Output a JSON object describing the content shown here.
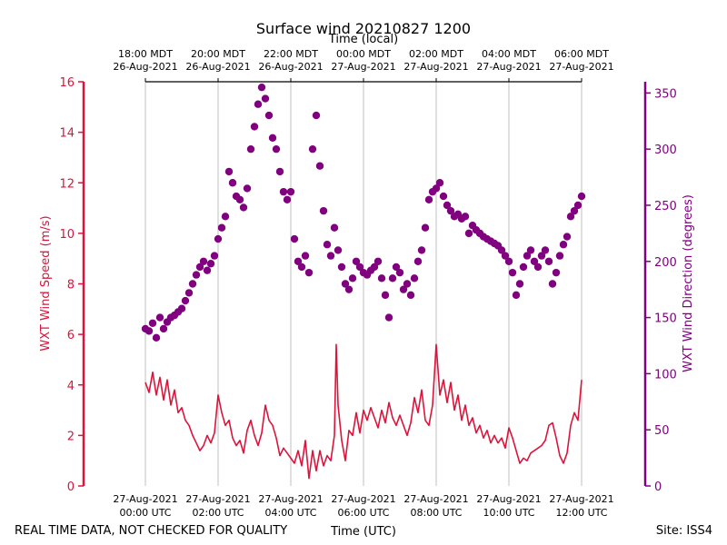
{
  "footer": {
    "note": "REAL TIME DATA, NOT CHECKED FOR QUALITY",
    "site": "Site: ISS4"
  },
  "colors": {
    "speed": "#dc143c",
    "direction": "#800080",
    "grid": "#b0b0b0",
    "axis": "#000000"
  },
  "chart_data": {
    "type": "line",
    "title": "Surface wind 20210827 1200",
    "xlabel": "Time (UTC)",
    "xlabel_top": "Time (local)",
    "ylabel_left": "WXT Wind Speed (m/s)",
    "ylabel_right": "WXT Wind Direction (degrees)",
    "xlim_hours_utc": [
      0,
      12
    ],
    "ylim_left": [
      0,
      16
    ],
    "ylim_right": [
      0,
      360
    ],
    "grid": "vertical",
    "yticks_left": [
      0,
      2,
      4,
      6,
      8,
      10,
      12,
      14,
      16
    ],
    "yticks_right": [
      0,
      50,
      100,
      150,
      200,
      250,
      300,
      350
    ],
    "xticks_bottom": [
      {
        "line1": "27-Aug-2021",
        "line2": "00:00 UTC"
      },
      {
        "line1": "27-Aug-2021",
        "line2": "02:00 UTC"
      },
      {
        "line1": "27-Aug-2021",
        "line2": "04:00 UTC"
      },
      {
        "line1": "27-Aug-2021",
        "line2": "06:00 UTC"
      },
      {
        "line1": "27-Aug-2021",
        "line2": "08:00 UTC"
      },
      {
        "line1": "27-Aug-2021",
        "line2": "10:00 UTC"
      },
      {
        "line1": "27-Aug-2021",
        "line2": "12:00 UTC"
      }
    ],
    "xticks_top": [
      {
        "line1": "18:00 MDT",
        "line2": "26-Aug-2021"
      },
      {
        "line1": "20:00 MDT",
        "line2": "26-Aug-2021"
      },
      {
        "line1": "22:00 MDT",
        "line2": "26-Aug-2021"
      },
      {
        "line1": "00:00 MDT",
        "line2": "27-Aug-2021"
      },
      {
        "line1": "02:00 MDT",
        "line2": "27-Aug-2021"
      },
      {
        "line1": "04:00 MDT",
        "line2": "27-Aug-2021"
      },
      {
        "line1": "06:00 MDT",
        "line2": "27-Aug-2021"
      }
    ],
    "series": [
      {
        "name": "WXT Wind Speed",
        "kind": "line",
        "axis": "left",
        "points": [
          [
            0.0,
            4.1
          ],
          [
            0.1,
            3.7
          ],
          [
            0.2,
            4.5
          ],
          [
            0.3,
            3.6
          ],
          [
            0.4,
            4.3
          ],
          [
            0.5,
            3.4
          ],
          [
            0.6,
            4.2
          ],
          [
            0.7,
            3.2
          ],
          [
            0.8,
            3.8
          ],
          [
            0.9,
            2.9
          ],
          [
            1.0,
            3.1
          ],
          [
            1.1,
            2.6
          ],
          [
            1.2,
            2.4
          ],
          [
            1.3,
            2.0
          ],
          [
            1.4,
            1.7
          ],
          [
            1.5,
            1.4
          ],
          [
            1.6,
            1.6
          ],
          [
            1.7,
            2.0
          ],
          [
            1.8,
            1.7
          ],
          [
            1.9,
            2.1
          ],
          [
            2.0,
            3.6
          ],
          [
            2.1,
            2.9
          ],
          [
            2.2,
            2.4
          ],
          [
            2.3,
            2.6
          ],
          [
            2.4,
            1.9
          ],
          [
            2.5,
            1.6
          ],
          [
            2.6,
            1.8
          ],
          [
            2.7,
            1.3
          ],
          [
            2.8,
            2.2
          ],
          [
            2.9,
            2.6
          ],
          [
            3.0,
            2.0
          ],
          [
            3.1,
            1.6
          ],
          [
            3.2,
            2.1
          ],
          [
            3.3,
            3.2
          ],
          [
            3.4,
            2.6
          ],
          [
            3.5,
            2.4
          ],
          [
            3.6,
            1.9
          ],
          [
            3.7,
            1.2
          ],
          [
            3.8,
            1.5
          ],
          [
            3.9,
            1.3
          ],
          [
            4.0,
            1.1
          ],
          [
            4.1,
            0.9
          ],
          [
            4.2,
            1.4
          ],
          [
            4.3,
            0.8
          ],
          [
            4.4,
            1.8
          ],
          [
            4.5,
            0.3
          ],
          [
            4.6,
            1.4
          ],
          [
            4.7,
            0.6
          ],
          [
            4.8,
            1.4
          ],
          [
            4.9,
            0.8
          ],
          [
            5.0,
            1.2
          ],
          [
            5.1,
            1.0
          ],
          [
            5.2,
            2.0
          ],
          [
            5.25,
            5.6
          ],
          [
            5.3,
            3.2
          ],
          [
            5.4,
            1.8
          ],
          [
            5.5,
            1.0
          ],
          [
            5.6,
            2.2
          ],
          [
            5.7,
            2.0
          ],
          [
            5.8,
            2.9
          ],
          [
            5.9,
            2.1
          ],
          [
            6.0,
            3.0
          ],
          [
            6.1,
            2.6
          ],
          [
            6.2,
            3.1
          ],
          [
            6.3,
            2.7
          ],
          [
            6.4,
            2.3
          ],
          [
            6.5,
            3.0
          ],
          [
            6.6,
            2.5
          ],
          [
            6.7,
            3.3
          ],
          [
            6.8,
            2.7
          ],
          [
            6.9,
            2.4
          ],
          [
            7.0,
            2.8
          ],
          [
            7.1,
            2.4
          ],
          [
            7.2,
            2.0
          ],
          [
            7.3,
            2.5
          ],
          [
            7.4,
            3.5
          ],
          [
            7.5,
            2.9
          ],
          [
            7.6,
            3.8
          ],
          [
            7.7,
            2.6
          ],
          [
            7.8,
            2.4
          ],
          [
            7.9,
            3.2
          ],
          [
            8.0,
            5.6
          ],
          [
            8.1,
            3.6
          ],
          [
            8.2,
            4.2
          ],
          [
            8.3,
            3.3
          ],
          [
            8.4,
            4.1
          ],
          [
            8.5,
            3.0
          ],
          [
            8.6,
            3.6
          ],
          [
            8.7,
            2.6
          ],
          [
            8.8,
            3.2
          ],
          [
            8.9,
            2.4
          ],
          [
            9.0,
            2.7
          ],
          [
            9.1,
            2.1
          ],
          [
            9.2,
            2.4
          ],
          [
            9.3,
            1.9
          ],
          [
            9.4,
            2.2
          ],
          [
            9.5,
            1.7
          ],
          [
            9.6,
            2.0
          ],
          [
            9.7,
            1.7
          ],
          [
            9.8,
            1.9
          ],
          [
            9.9,
            1.5
          ],
          [
            10.0,
            2.3
          ],
          [
            10.1,
            1.9
          ],
          [
            10.2,
            1.4
          ],
          [
            10.3,
            0.9
          ],
          [
            10.4,
            1.1
          ],
          [
            10.5,
            1.0
          ],
          [
            10.6,
            1.3
          ],
          [
            10.7,
            1.4
          ],
          [
            10.8,
            1.5
          ],
          [
            10.9,
            1.6
          ],
          [
            11.0,
            1.8
          ],
          [
            11.1,
            2.4
          ],
          [
            11.2,
            2.5
          ],
          [
            11.3,
            1.9
          ],
          [
            11.4,
            1.2
          ],
          [
            11.5,
            0.9
          ],
          [
            11.6,
            1.3
          ],
          [
            11.7,
            2.4
          ],
          [
            11.8,
            2.9
          ],
          [
            11.9,
            2.6
          ],
          [
            12.0,
            4.2
          ]
        ]
      },
      {
        "name": "WXT Wind Direction",
        "kind": "scatter",
        "axis": "right",
        "points": [
          [
            0.0,
            140
          ],
          [
            0.1,
            138
          ],
          [
            0.2,
            145
          ],
          [
            0.3,
            132
          ],
          [
            0.4,
            150
          ],
          [
            0.5,
            140
          ],
          [
            0.6,
            146
          ],
          [
            0.7,
            150
          ],
          [
            0.8,
            152
          ],
          [
            0.9,
            155
          ],
          [
            1.0,
            158
          ],
          [
            1.1,
            165
          ],
          [
            1.2,
            172
          ],
          [
            1.3,
            180
          ],
          [
            1.4,
            188
          ],
          [
            1.5,
            195
          ],
          [
            1.6,
            200
          ],
          [
            1.7,
            192
          ],
          [
            1.8,
            198
          ],
          [
            1.9,
            205
          ],
          [
            2.0,
            220
          ],
          [
            2.1,
            230
          ],
          [
            2.2,
            240
          ],
          [
            2.3,
            280
          ],
          [
            2.4,
            270
          ],
          [
            2.5,
            258
          ],
          [
            2.6,
            255
          ],
          [
            2.7,
            248
          ],
          [
            2.8,
            265
          ],
          [
            2.9,
            300
          ],
          [
            3.0,
            320
          ],
          [
            3.1,
            340
          ],
          [
            3.2,
            355
          ],
          [
            3.3,
            345
          ],
          [
            3.4,
            330
          ],
          [
            3.5,
            310
          ],
          [
            3.6,
            300
          ],
          [
            3.7,
            280
          ],
          [
            3.8,
            262
          ],
          [
            3.9,
            255
          ],
          [
            4.0,
            262
          ],
          [
            4.1,
            220
          ],
          [
            4.2,
            200
          ],
          [
            4.3,
            195
          ],
          [
            4.4,
            205
          ],
          [
            4.5,
            190
          ],
          [
            4.6,
            300
          ],
          [
            4.7,
            330
          ],
          [
            4.8,
            285
          ],
          [
            4.9,
            245
          ],
          [
            5.0,
            215
          ],
          [
            5.1,
            205
          ],
          [
            5.2,
            230
          ],
          [
            5.3,
            210
          ],
          [
            5.4,
            195
          ],
          [
            5.5,
            180
          ],
          [
            5.6,
            175
          ],
          [
            5.7,
            185
          ],
          [
            5.8,
            200
          ],
          [
            5.9,
            195
          ],
          [
            6.0,
            190
          ],
          [
            6.1,
            188
          ],
          [
            6.2,
            192
          ],
          [
            6.3,
            195
          ],
          [
            6.4,
            200
          ],
          [
            6.5,
            185
          ],
          [
            6.6,
            170
          ],
          [
            6.7,
            150
          ],
          [
            6.8,
            185
          ],
          [
            6.9,
            195
          ],
          [
            7.0,
            190
          ],
          [
            7.1,
            175
          ],
          [
            7.2,
            180
          ],
          [
            7.3,
            170
          ],
          [
            7.4,
            185
          ],
          [
            7.5,
            200
          ],
          [
            7.6,
            210
          ],
          [
            7.7,
            230
          ],
          [
            7.8,
            255
          ],
          [
            7.9,
            262
          ],
          [
            8.0,
            265
          ],
          [
            8.1,
            270
          ],
          [
            8.2,
            258
          ],
          [
            8.3,
            250
          ],
          [
            8.4,
            245
          ],
          [
            8.5,
            240
          ],
          [
            8.6,
            242
          ],
          [
            8.7,
            238
          ],
          [
            8.8,
            240
          ],
          [
            8.9,
            225
          ],
          [
            9.0,
            232
          ],
          [
            9.1,
            228
          ],
          [
            9.2,
            225
          ],
          [
            9.3,
            222
          ],
          [
            9.4,
            220
          ],
          [
            9.5,
            218
          ],
          [
            9.6,
            216
          ],
          [
            9.7,
            214
          ],
          [
            9.8,
            210
          ],
          [
            9.9,
            205
          ],
          [
            10.0,
            200
          ],
          [
            10.1,
            190
          ],
          [
            10.2,
            170
          ],
          [
            10.3,
            180
          ],
          [
            10.4,
            195
          ],
          [
            10.5,
            205
          ],
          [
            10.6,
            210
          ],
          [
            10.7,
            200
          ],
          [
            10.8,
            195
          ],
          [
            10.9,
            205
          ],
          [
            11.0,
            210
          ],
          [
            11.1,
            200
          ],
          [
            11.2,
            180
          ],
          [
            11.3,
            190
          ],
          [
            11.4,
            205
          ],
          [
            11.5,
            215
          ],
          [
            11.6,
            222
          ],
          [
            11.7,
            240
          ],
          [
            11.8,
            245
          ],
          [
            11.9,
            250
          ],
          [
            12.0,
            258
          ]
        ]
      }
    ]
  }
}
